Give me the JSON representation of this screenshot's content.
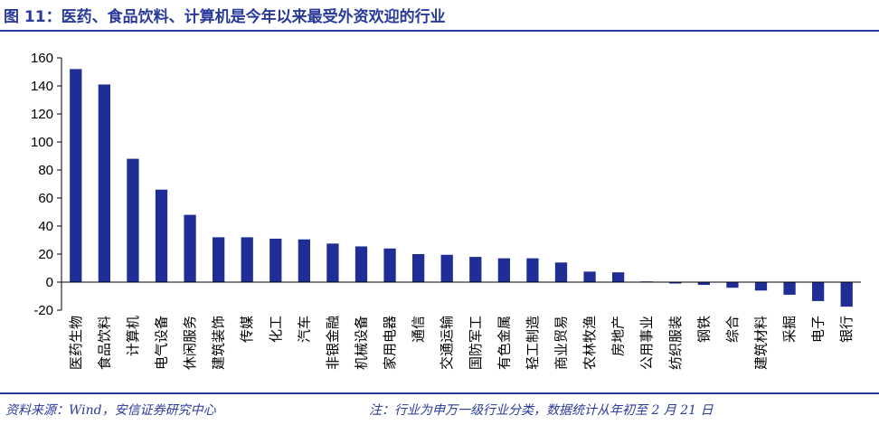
{
  "figure": {
    "title": "图 11：医药、食品饮料、计算机是今年以来最受外资欢迎的行业",
    "source": "资料来源：Wind，安信证券研究中心",
    "note": "注：行业为申万一级行业分类，数据统计从年初至 2 月 21 日",
    "colors": {
      "accent": "#2a3a9a",
      "bar": "#1f2d96"
    }
  },
  "chart_data": {
    "type": "bar",
    "title": "",
    "xlabel": "",
    "ylabel": "",
    "ylim": [
      -20,
      160
    ],
    "yticks": [
      -20,
      0,
      20,
      40,
      60,
      80,
      100,
      120,
      140,
      160
    ],
    "grid": false,
    "categories": [
      "医药生物",
      "食品饮料",
      "计算机",
      "电气设备",
      "休闲服务",
      "建筑装饰",
      "传媒",
      "化工",
      "汽车",
      "非银金融",
      "机械设备",
      "家用电器",
      "通信",
      "交通运输",
      "国防军工",
      "有色金属",
      "轻工制造",
      "商业贸易",
      "农林牧渔",
      "房地产",
      "公用事业",
      "纺织服装",
      "钢铁",
      "综合",
      "建筑材料",
      "采掘",
      "电子",
      "银行"
    ],
    "values": [
      152,
      141,
      88,
      66,
      48,
      32,
      32,
      31,
      30.5,
      27.5,
      25.5,
      24,
      20,
      19.5,
      18,
      17,
      17,
      14,
      7.5,
      7,
      0.5,
      -1,
      -2,
      -4,
      -6,
      -9,
      -13.5,
      -17.5
    ]
  }
}
